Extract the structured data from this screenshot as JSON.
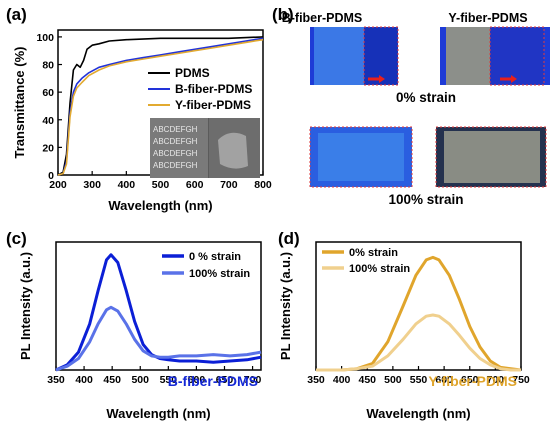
{
  "panels": {
    "a": "(a)",
    "b": "(b)",
    "c": "(c)",
    "d": "(d)"
  },
  "photos": {
    "b_fiber_label": "B-fiber-PDMS",
    "y_fiber_label": "Y-fiber-PDMS",
    "strain_0": "0% strain",
    "strain_100": "100% strain",
    "inset_text_rows": [
      "ABCDEFGH",
      "ABCDEFGH",
      "ABCDEFGH",
      "ABCDEFGH"
    ]
  },
  "chart_data": [
    {
      "id": "a",
      "type": "line",
      "xlabel": "Wavelength (nm)",
      "ylabel": "Transmittance (%)",
      "xlim": [
        200,
        800
      ],
      "ylim": [
        0,
        105
      ],
      "xticks": [
        200,
        300,
        400,
        500,
        600,
        700,
        800
      ],
      "yticks": [
        0,
        20,
        40,
        60,
        80,
        100
      ],
      "legend_position": "top-right",
      "series": [
        {
          "name": "PDMS",
          "color": "#000000",
          "x": [
            200,
            215,
            225,
            235,
            245,
            255,
            265,
            275,
            285,
            300,
            320,
            350,
            400,
            500,
            600,
            700,
            800
          ],
          "y": [
            0,
            2,
            15,
            52,
            76,
            80,
            78,
            83,
            91,
            94,
            95,
            97,
            98,
            99,
            99,
            99,
            100
          ]
        },
        {
          "name": "B-fiber-PDMS",
          "color": "#2233d9",
          "x": [
            200,
            215,
            225,
            235,
            245,
            255,
            270,
            290,
            320,
            350,
            400,
            450,
            500,
            550,
            600,
            650,
            700,
            750,
            800
          ],
          "y": [
            0,
            1,
            10,
            45,
            60,
            66,
            70,
            74,
            78,
            80,
            83,
            85,
            87,
            89,
            91,
            93,
            95,
            97,
            99
          ]
        },
        {
          "name": "Y-fiber-PDMS",
          "color": "#e2aa30",
          "x": [
            200,
            215,
            225,
            235,
            245,
            255,
            270,
            290,
            320,
            350,
            400,
            450,
            500,
            550,
            600,
            650,
            700,
            750,
            800
          ],
          "y": [
            0,
            1,
            8,
            42,
            57,
            63,
            67,
            72,
            76,
            79,
            82,
            84,
            86,
            88,
            90,
            92,
            94,
            96,
            98
          ]
        }
      ]
    },
    {
      "id": "c",
      "type": "line",
      "xlabel": "Wavelength (nm)",
      "ylabel": "PL Intensity (a.u.)",
      "xlim": [
        350,
        715
      ],
      "xticks": [
        350,
        400,
        450,
        500,
        550,
        600,
        650,
        700
      ],
      "ylim": [
        0,
        1.0
      ],
      "annotation": "B-fiber-PDMS",
      "legend_position": "top-right",
      "series": [
        {
          "name": "0 % strain",
          "color": "#0b1fd6",
          "x": [
            350,
            370,
            390,
            410,
            425,
            440,
            448,
            460,
            475,
            490,
            505,
            520,
            535,
            550,
            570,
            600,
            630,
            660,
            690,
            715
          ],
          "y": [
            0.0,
            0.04,
            0.14,
            0.36,
            0.62,
            0.86,
            0.9,
            0.84,
            0.62,
            0.38,
            0.2,
            0.12,
            0.09,
            0.08,
            0.07,
            0.07,
            0.06,
            0.07,
            0.08,
            0.1
          ]
        },
        {
          "name": "100% strain",
          "color": "#5a72e8",
          "x": [
            350,
            370,
            390,
            410,
            425,
            440,
            448,
            460,
            475,
            490,
            505,
            520,
            535,
            550,
            570,
            600,
            630,
            660,
            690,
            715
          ],
          "y": [
            0.0,
            0.03,
            0.09,
            0.22,
            0.36,
            0.47,
            0.49,
            0.46,
            0.36,
            0.24,
            0.15,
            0.11,
            0.1,
            0.1,
            0.11,
            0.11,
            0.12,
            0.11,
            0.12,
            0.14
          ]
        }
      ]
    },
    {
      "id": "d",
      "type": "line",
      "xlabel": "Wavelength (nm)",
      "ylabel": "PL Intensity (a.u.)",
      "xlim": [
        350,
        750
      ],
      "xticks": [
        350,
        400,
        450,
        500,
        550,
        600,
        650,
        700,
        750
      ],
      "ylim": [
        0,
        1.0
      ],
      "annotation": "Y-fiber-PDMS",
      "legend_position": "top-left",
      "series": [
        {
          "name": "0% strain",
          "color": "#e0a52c",
          "x": [
            350,
            400,
            430,
            460,
            490,
            520,
            545,
            565,
            578,
            590,
            610,
            630,
            650,
            670,
            690,
            710,
            730,
            750
          ],
          "y": [
            0.0,
            0.0,
            0.01,
            0.05,
            0.22,
            0.5,
            0.74,
            0.86,
            0.88,
            0.86,
            0.74,
            0.55,
            0.34,
            0.18,
            0.07,
            0.02,
            0.01,
            0.0
          ]
        },
        {
          "name": "100% strain",
          "color": "#f0d08e",
          "x": [
            350,
            400,
            430,
            460,
            490,
            520,
            545,
            565,
            578,
            590,
            610,
            630,
            650,
            670,
            690,
            710,
            730,
            750
          ],
          "y": [
            0.0,
            0.0,
            0.01,
            0.03,
            0.11,
            0.24,
            0.36,
            0.42,
            0.43,
            0.42,
            0.36,
            0.27,
            0.17,
            0.09,
            0.04,
            0.01,
            0.0,
            0.0
          ]
        }
      ]
    }
  ]
}
